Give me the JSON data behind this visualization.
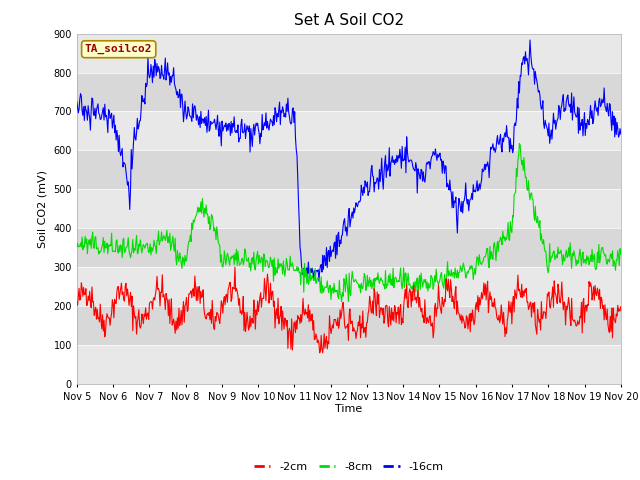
{
  "title": "Set A Soil CO2",
  "ylabel": "Soil CO2 (mV)",
  "xlabel": "Time",
  "legend_label": "TA_soilco2",
  "ylim": [
    0,
    900
  ],
  "yticks": [
    0,
    100,
    200,
    300,
    400,
    500,
    600,
    700,
    800,
    900
  ],
  "x_tick_labels": [
    "Nov 5",
    "Nov 6",
    "Nov 7",
    "Nov 8",
    "Nov 9",
    "Nov 10",
    "Nov 11",
    "Nov 12",
    "Nov 13",
    "Nov 14",
    "Nov 15",
    "Nov 16",
    "Nov 17",
    "Nov 18",
    "Nov 19",
    "Nov 20"
  ],
  "line_colors": {
    "red": "#ff0000",
    "green": "#00dd00",
    "blue": "#0000ff"
  },
  "legend_entries": [
    "-2cm",
    "-8cm",
    "-16cm"
  ],
  "legend_colors": [
    "#ff0000",
    "#00dd00",
    "#0000ff"
  ],
  "title_fontsize": 11,
  "axis_fontsize": 7,
  "label_fontsize": 8,
  "legend_fontsize": 8
}
